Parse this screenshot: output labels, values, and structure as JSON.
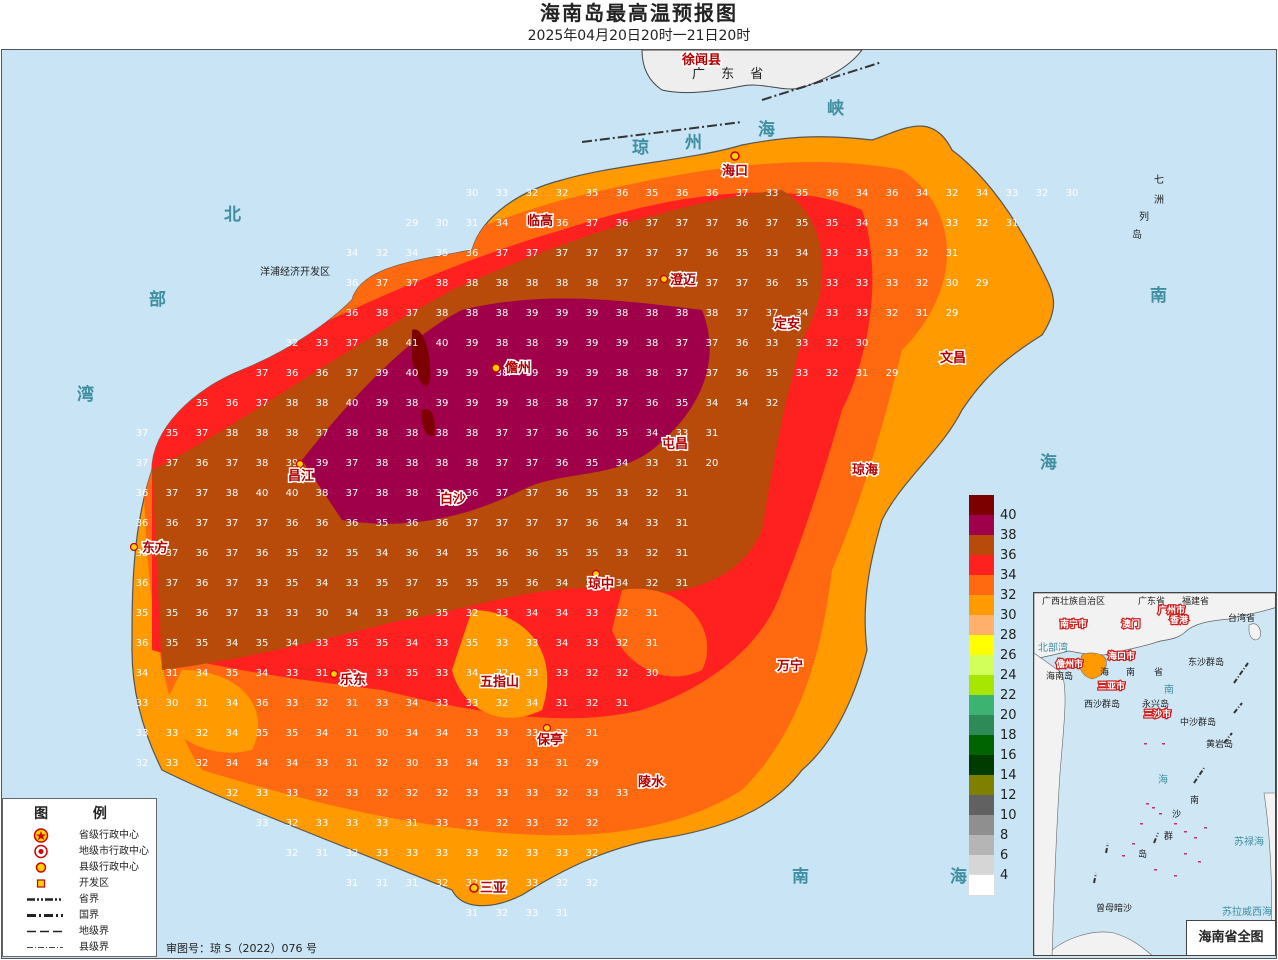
{
  "title": "海南岛最高温预报图",
  "subtitle": "2025年04月20日20时一21日20时",
  "map": {
    "sea_labels": [
      "琼",
      "州",
      "海",
      "峡",
      "北",
      "部",
      "湾",
      "南",
      "海",
      "南",
      "海",
      "海",
      "南"
    ],
    "province_label": "广 东 省",
    "county_xuwen": "徐闻县",
    "islands_qizhou": [
      "七",
      "洲",
      "列",
      "岛"
    ],
    "dev_zone_label": "洋浦经济开发区",
    "cities": [
      "海口",
      "临高",
      "澄迈",
      "定安",
      "文昌",
      "儋州",
      "屯昌",
      "琼海",
      "昌江",
      "白沙",
      "东方",
      "琼中",
      "万宁",
      "乐东",
      "五指山",
      "保亭",
      "陵水",
      "三亚"
    ],
    "grid_rows": [
      [
        "30",
        "33",
        "32",
        "32",
        "35",
        "36",
        "35",
        "36",
        "36",
        "37",
        "33",
        "35",
        "36",
        "34",
        "36",
        "34",
        "32",
        "34",
        "33",
        "32",
        "30"
      ],
      [
        "29",
        "30",
        "31",
        "34",
        "35",
        "36",
        "37",
        "36",
        "37",
        "37",
        "37",
        "36",
        "37",
        "35",
        "35",
        "34",
        "33",
        "34",
        "33",
        "32",
        "31"
      ],
      [
        "34",
        "32",
        "34",
        "35",
        "36",
        "37",
        "37",
        "37",
        "37",
        "37",
        "37",
        "37",
        "36",
        "35",
        "33",
        "34",
        "33",
        "33",
        "33",
        "32",
        "31"
      ],
      [
        "36",
        "37",
        "37",
        "38",
        "38",
        "38",
        "38",
        "38",
        "38",
        "37",
        "37",
        "37",
        "37",
        "37",
        "36",
        "35",
        "33",
        "33",
        "33",
        "32",
        "30",
        "29"
      ],
      [
        "36",
        "38",
        "37",
        "38",
        "38",
        "38",
        "39",
        "39",
        "39",
        "38",
        "38",
        "38",
        "38",
        "37",
        "37",
        "34",
        "33",
        "33",
        "32",
        "31",
        "29"
      ],
      [
        "32",
        "33",
        "37",
        "38",
        "41",
        "40",
        "39",
        "38",
        "38",
        "39",
        "39",
        "39",
        "38",
        "37",
        "37",
        "36",
        "33",
        "33",
        "32",
        "30"
      ],
      [
        "37",
        "36",
        "36",
        "37",
        "39",
        "40",
        "39",
        "39",
        "38",
        "39",
        "39",
        "39",
        "38",
        "38",
        "37",
        "37",
        "36",
        "35",
        "33",
        "32",
        "31",
        "29"
      ],
      [
        "35",
        "36",
        "37",
        "38",
        "38",
        "40",
        "39",
        "38",
        "39",
        "39",
        "39",
        "38",
        "38",
        "37",
        "37",
        "36",
        "35",
        "34",
        "34",
        "32"
      ],
      [
        "37",
        "35",
        "37",
        "38",
        "38",
        "38",
        "37",
        "38",
        "38",
        "38",
        "38",
        "38",
        "37",
        "37",
        "36",
        "36",
        "35",
        "34",
        "33",
        "31"
      ],
      [
        "37",
        "37",
        "36",
        "37",
        "38",
        "39",
        "39",
        "37",
        "38",
        "38",
        "38",
        "38",
        "37",
        "37",
        "36",
        "35",
        "34",
        "33",
        "31",
        "20"
      ],
      [
        "36",
        "37",
        "37",
        "38",
        "40",
        "40",
        "38",
        "37",
        "38",
        "38",
        "37",
        "36",
        "37",
        "37",
        "36",
        "35",
        "33",
        "32",
        "31"
      ],
      [
        "36",
        "36",
        "37",
        "37",
        "37",
        "36",
        "36",
        "36",
        "35",
        "36",
        "36",
        "37",
        "37",
        "37",
        "37",
        "36",
        "34",
        "33",
        "31"
      ],
      [
        "35",
        "37",
        "36",
        "37",
        "36",
        "35",
        "32",
        "35",
        "34",
        "36",
        "34",
        "35",
        "36",
        "36",
        "35",
        "35",
        "33",
        "32",
        "31"
      ],
      [
        "36",
        "37",
        "36",
        "37",
        "33",
        "35",
        "34",
        "33",
        "35",
        "37",
        "35",
        "35",
        "35",
        "36",
        "34",
        "35",
        "34",
        "32",
        "31"
      ],
      [
        "35",
        "35",
        "36",
        "37",
        "33",
        "33",
        "30",
        "34",
        "33",
        "36",
        "35",
        "32",
        "33",
        "34",
        "34",
        "33",
        "32",
        "31"
      ],
      [
        "36",
        "35",
        "35",
        "34",
        "35",
        "34",
        "33",
        "35",
        "35",
        "34",
        "33",
        "35",
        "33",
        "33",
        "34",
        "33",
        "32",
        "31"
      ],
      [
        "34",
        "31",
        "34",
        "35",
        "34",
        "33",
        "31",
        "32",
        "33",
        "35",
        "33",
        "34",
        "32",
        "33",
        "33",
        "32",
        "32",
        "30"
      ],
      [
        "33",
        "30",
        "31",
        "34",
        "36",
        "33",
        "32",
        "31",
        "33",
        "34",
        "33",
        "33",
        "32",
        "34",
        "31",
        "32",
        "31"
      ],
      [
        "33",
        "33",
        "32",
        "34",
        "35",
        "35",
        "34",
        "31",
        "30",
        "34",
        "34",
        "33",
        "33",
        "33",
        "32",
        "31"
      ],
      [
        "32",
        "33",
        "32",
        "34",
        "34",
        "34",
        "33",
        "31",
        "32",
        "30",
        "33",
        "34",
        "33",
        "33",
        "31",
        "29"
      ],
      [
        "32",
        "33",
        "33",
        "32",
        "33",
        "32",
        "32",
        "32",
        "33",
        "33",
        "33",
        "32",
        "33",
        "33"
      ],
      [
        "33",
        "32",
        "33",
        "33",
        "33",
        "31",
        "33",
        "33",
        "32",
        "33",
        "32",
        "32"
      ],
      [
        "32",
        "31",
        "32",
        "33",
        "33",
        "33",
        "33",
        "32",
        "33",
        "33",
        "32"
      ],
      [
        "31",
        "31",
        "31",
        "32",
        "32",
        "33",
        "33",
        "32",
        "32"
      ],
      [
        "31",
        "32",
        "33",
        "31"
      ]
    ]
  },
  "color_legend": [
    {
      "label": "40",
      "color": "#7d0000"
    },
    {
      "label": "38",
      "color": "#a0004a"
    },
    {
      "label": "36",
      "color": "#b84a0a"
    },
    {
      "label": "34",
      "color": "#ff2020"
    },
    {
      "label": "32",
      "color": "#ff6a10"
    },
    {
      "label": "30",
      "color": "#ff9a00"
    },
    {
      "label": "28",
      "color": "#ffb16b"
    },
    {
      "label": "26",
      "color": "#ffff00"
    },
    {
      "label": "24",
      "color": "#d2ff5a"
    },
    {
      "label": "22",
      "color": "#a6e600"
    },
    {
      "label": "20",
      "color": "#3cb371"
    },
    {
      "label": "18",
      "color": "#2e8b57"
    },
    {
      "label": "16",
      "color": "#006400"
    },
    {
      "label": "14",
      "color": "#003c00"
    },
    {
      "label": "12",
      "color": "#7f7f00"
    },
    {
      "label": "10",
      "color": "#616161"
    },
    {
      "label": "8",
      "color": "#8f8f8f"
    },
    {
      "label": "6",
      "color": "#b5b5b5"
    },
    {
      "label": "4",
      "color": "#d6d6d6"
    },
    {
      "label": "",
      "color": "#ffffff"
    }
  ],
  "symbol_legend": {
    "title": "图 例",
    "items": [
      {
        "icon": "provincial-capital-icon",
        "text": "省级行政中心"
      },
      {
        "icon": "prefecture-city-icon",
        "text": "地级市行政中心"
      },
      {
        "icon": "county-center-icon",
        "text": "县级行政中心"
      },
      {
        "icon": "dev-zone-icon",
        "text": "开发区"
      },
      {
        "icon": "provincial-boundary-icon",
        "text": "省界"
      },
      {
        "icon": "national-boundary-icon",
        "text": "国界"
      },
      {
        "icon": "prefecture-boundary-icon",
        "text": "地级界"
      },
      {
        "icon": "county-boundary-icon",
        "text": "县级界"
      }
    ]
  },
  "approval": "审图号：琼 S（2022）076 号",
  "inset": {
    "caption": "海南省全图",
    "labels": [
      "广西壮族自治区",
      "广东省",
      "福建省",
      "南宁市",
      "广州市",
      "澳门",
      "香港",
      "台湾省",
      "北部湾",
      "海口市",
      "儋州市",
      "三亚市",
      "海",
      "南",
      "省",
      "海南岛",
      "东沙群岛",
      "西沙群岛",
      "永兴岛",
      "三沙市",
      "中沙群岛",
      "黄岩岛",
      "南",
      "海",
      "南",
      "沙",
      "群",
      "岛",
      "苏禄海",
      "曾母暗沙",
      "苏拉威西海"
    ]
  }
}
